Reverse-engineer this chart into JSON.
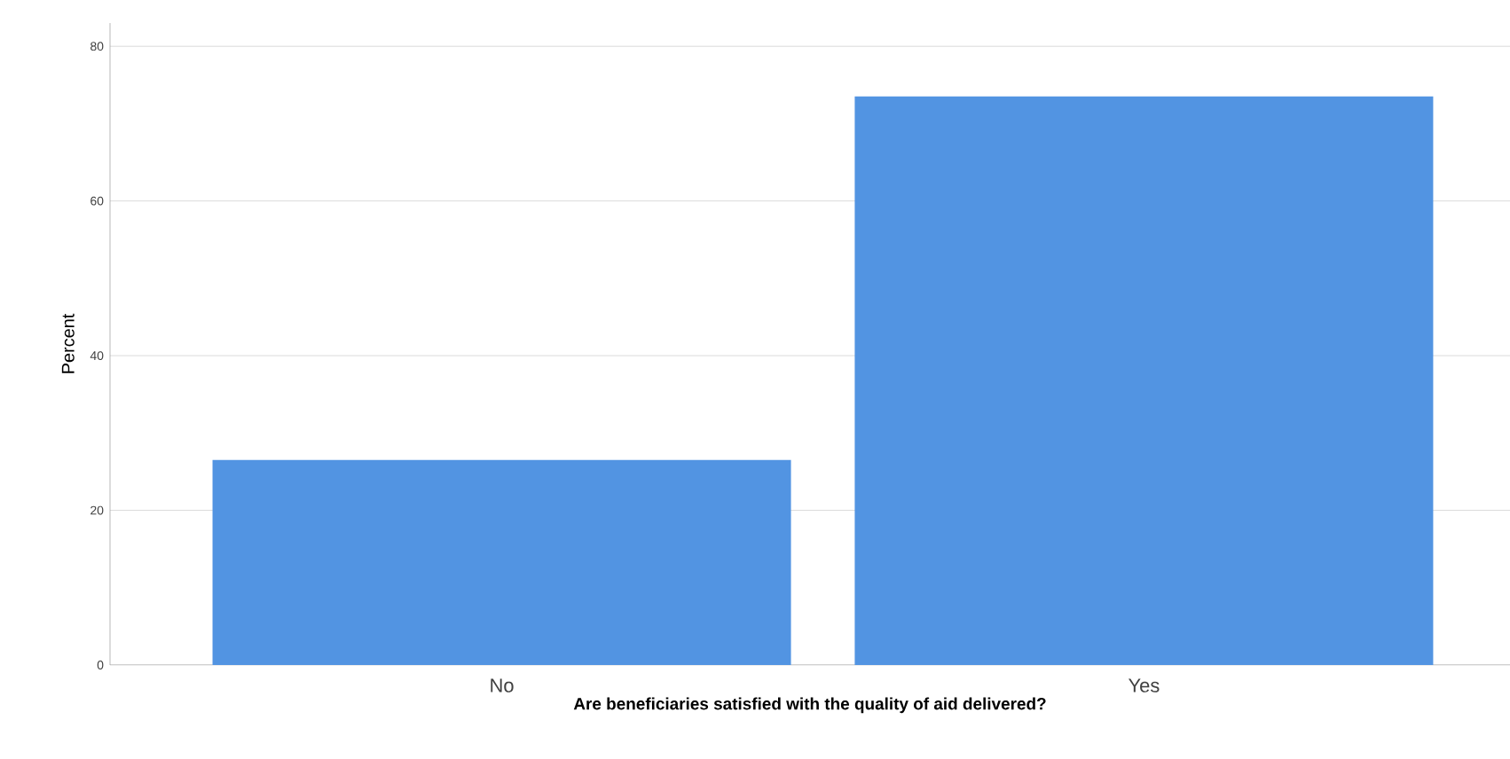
{
  "chart_data": {
    "type": "bar",
    "xlabel": "Are beneficiaries satisfied with the quality of aid delivered?",
    "ylabel": "Percent",
    "categories": [
      "No",
      "Yes"
    ],
    "values": [
      26.5,
      73.5
    ],
    "color": "#5294e2",
    "ylim": [
      0,
      83
    ],
    "yticks": [
      0,
      20,
      40,
      60,
      80
    ],
    "grid": "y"
  }
}
